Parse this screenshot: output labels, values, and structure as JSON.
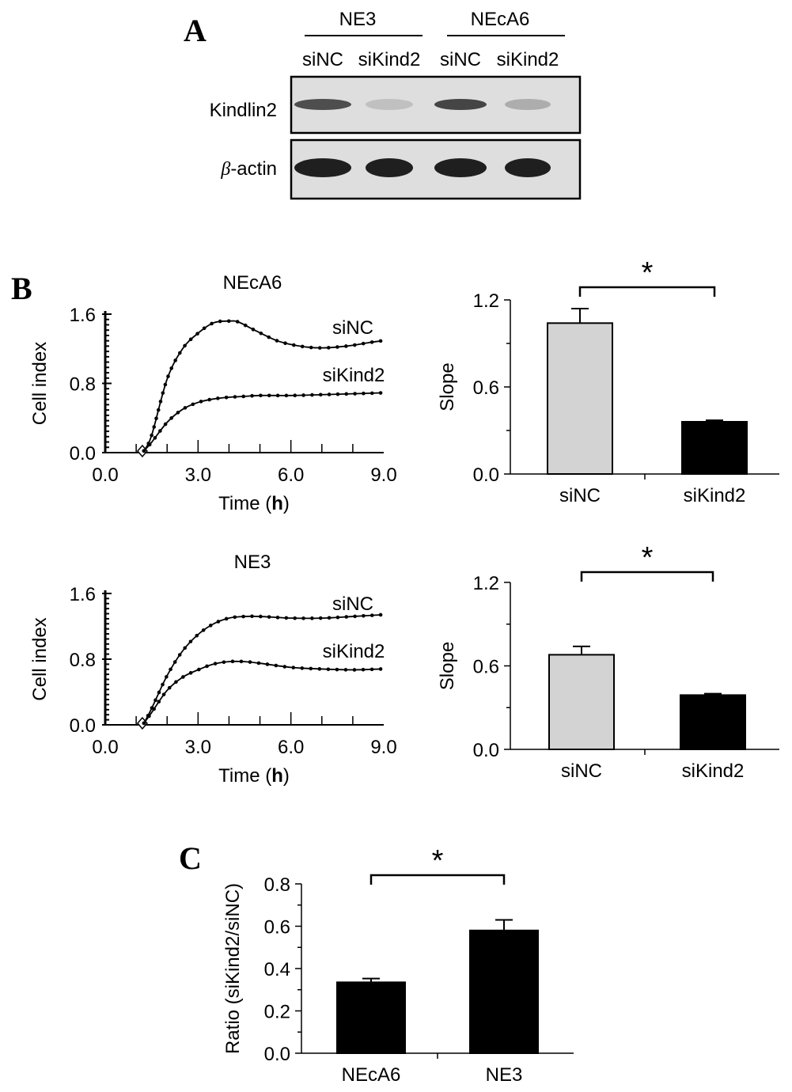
{
  "panels": {
    "a": "A",
    "b": "B",
    "c": "C"
  },
  "blot": {
    "groups": [
      "NE3",
      "NEcA6"
    ],
    "lanes": [
      "siNC",
      "siKind2",
      "siNC",
      "siKind2"
    ],
    "rows": [
      {
        "label": "Kindlin2",
        "intensity": [
          0.75,
          0.15,
          0.8,
          0.25
        ]
      },
      {
        "label_symbol": "β",
        "label_rest": "-actin",
        "intensity": [
          1.0,
          1.0,
          1.0,
          1.0
        ]
      }
    ]
  },
  "chart_data": [
    {
      "type": "line",
      "title": "NEcA6",
      "xlabel_prefix": "Time (",
      "xlabel_unit": "h",
      "xlabel_suffix": ")",
      "ylabel": "Cell index",
      "xlim": [
        0,
        9
      ],
      "ylim": [
        0,
        1.6
      ],
      "xticks": [
        "0.0",
        "3.0",
        "6.0",
        "9.0"
      ],
      "yticks": [
        "0.0",
        "0.8",
        "1.6"
      ],
      "start_x": 1.2,
      "series": [
        {
          "name": "siNC",
          "x": [
            1.25,
            1.5,
            2.0,
            2.5,
            3.0,
            3.5,
            4.0,
            4.3,
            4.8,
            5.5,
            6.0,
            6.5,
            7.0,
            7.5,
            8.0,
            8.5,
            8.9
          ],
          "y": [
            0.02,
            0.2,
            0.85,
            1.2,
            1.38,
            1.5,
            1.52,
            1.51,
            1.42,
            1.3,
            1.25,
            1.22,
            1.21,
            1.22,
            1.24,
            1.27,
            1.29
          ]
        },
        {
          "name": "siKind2",
          "x": [
            1.25,
            1.5,
            2.0,
            2.5,
            3.0,
            3.5,
            4.0,
            4.5,
            5.0,
            6.0,
            7.0,
            8.0,
            8.9
          ],
          "y": [
            0.02,
            0.12,
            0.35,
            0.5,
            0.58,
            0.62,
            0.64,
            0.65,
            0.66,
            0.66,
            0.67,
            0.68,
            0.69
          ]
        }
      ]
    },
    {
      "type": "bar",
      "ylabel": "Slope",
      "categories": [
        "siNC",
        "siKind2"
      ],
      "values": [
        1.04,
        0.36
      ],
      "errors": [
        0.1,
        0.01
      ],
      "colors": [
        "#d3d3d3",
        "#000000"
      ],
      "ylim": [
        0,
        1.2
      ],
      "yticks": [
        "0.0",
        "0.6",
        "1.2"
      ],
      "significance": "*"
    },
    {
      "type": "line",
      "title": "NE3",
      "xlabel_prefix": "Time (",
      "xlabel_unit": "h",
      "xlabel_suffix": ")",
      "ylabel": "Cell index",
      "xlim": [
        0,
        9
      ],
      "ylim": [
        0,
        1.6
      ],
      "xticks": [
        "0.0",
        "3.0",
        "6.0",
        "9.0"
      ],
      "yticks": [
        "0.0",
        "0.8",
        "1.6"
      ],
      "start_x": 1.2,
      "series": [
        {
          "name": "siNC",
          "x": [
            1.25,
            1.5,
            2.0,
            2.5,
            3.0,
            3.5,
            4.0,
            4.5,
            5.0,
            6.0,
            7.0,
            8.0,
            8.9
          ],
          "y": [
            0.02,
            0.2,
            0.6,
            0.9,
            1.1,
            1.23,
            1.3,
            1.32,
            1.32,
            1.3,
            1.3,
            1.32,
            1.34
          ]
        },
        {
          "name": "siKind2",
          "x": [
            1.25,
            1.5,
            2.0,
            2.5,
            3.0,
            3.5,
            4.0,
            4.5,
            5.0,
            6.0,
            7.0,
            8.0,
            8.9
          ],
          "y": [
            0.02,
            0.15,
            0.42,
            0.58,
            0.67,
            0.74,
            0.77,
            0.77,
            0.75,
            0.7,
            0.68,
            0.67,
            0.68
          ]
        }
      ]
    },
    {
      "type": "bar",
      "ylabel": "Slope",
      "categories": [
        "siNC",
        "siKind2"
      ],
      "values": [
        0.68,
        0.39
      ],
      "errors": [
        0.06,
        0.01
      ],
      "colors": [
        "#d3d3d3",
        "#000000"
      ],
      "ylim": [
        0,
        1.2
      ],
      "yticks": [
        "0.0",
        "0.6",
        "1.2"
      ],
      "significance": "*"
    },
    {
      "type": "bar",
      "ylabel": "Ratio (siKind2/siNC)",
      "categories": [
        "NEcA6",
        "NE3"
      ],
      "values": [
        0.335,
        0.58
      ],
      "errors": [
        0.018,
        0.05
      ],
      "colors": [
        "#000000",
        "#000000"
      ],
      "ylim": [
        0,
        0.8
      ],
      "yticks": [
        "0.0",
        "0.2",
        "0.4",
        "0.6",
        "0.8"
      ],
      "significance": "*"
    }
  ]
}
